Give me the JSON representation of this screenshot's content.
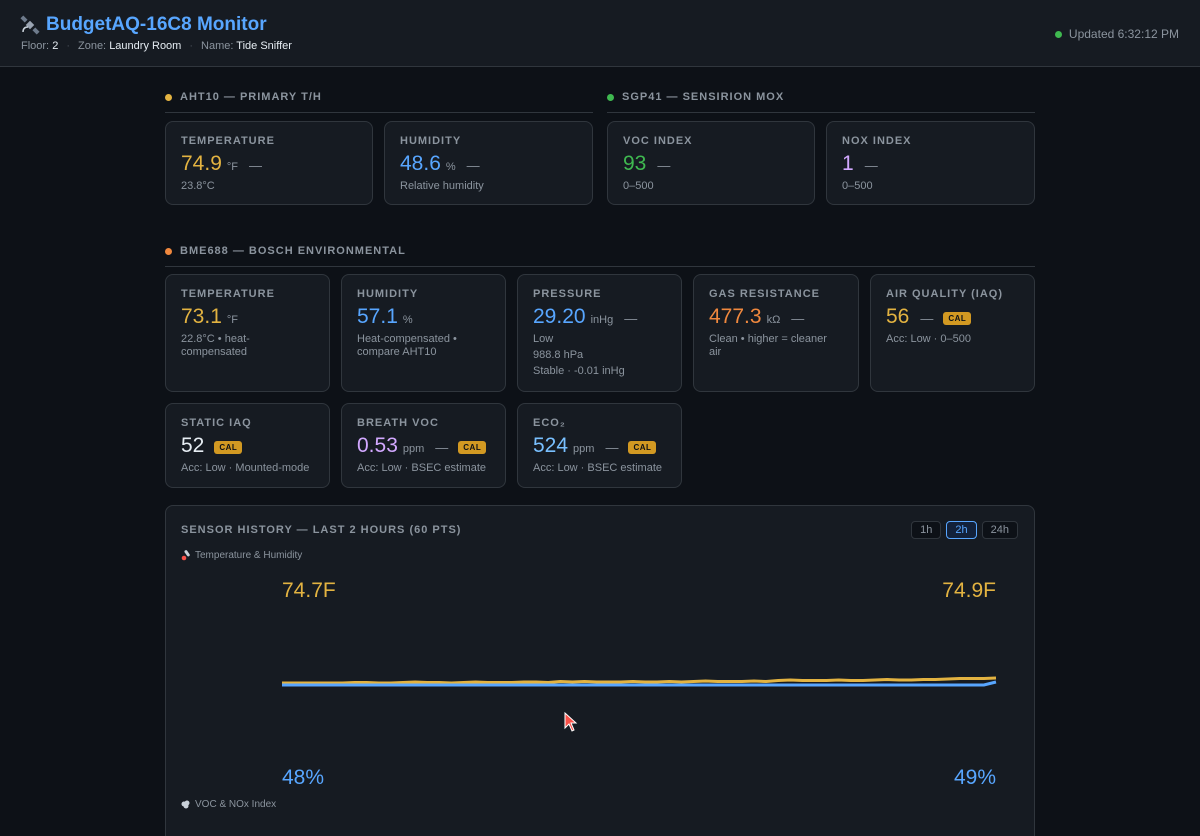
{
  "header": {
    "title": "BudgetAQ-16C8 Monitor",
    "floor_label": "Floor:",
    "floor": "2",
    "zone_label": "Zone:",
    "zone": "Laundry Room",
    "name_label": "Name:",
    "name": "Tide Sniffer",
    "updated": "Updated 6:32:12 PM",
    "icon": "satellite-icon"
  },
  "aht10": {
    "title": "AHT10 — PRIMARY T/H",
    "dot_color": "#e3b341",
    "temperature": {
      "label": "TEMPERATURE",
      "value": "74.9",
      "unit": "°F",
      "trend": "—",
      "sub": "23.8°C"
    },
    "humidity": {
      "label": "HUMIDITY",
      "value": "48.6",
      "unit": "%",
      "trend": "—",
      "sub": "Relative humidity"
    }
  },
  "sgp41": {
    "title": "SGP41 — SENSIRION MOX",
    "dot_color": "#3fb950",
    "voc": {
      "label": "VOC INDEX",
      "value": "93",
      "trend": "—",
      "sub": "0–500"
    },
    "nox": {
      "label": "NOX INDEX",
      "value": "1",
      "trend": "—",
      "sub": "0–500"
    }
  },
  "bme688": {
    "title": "BME688 — BOSCH ENVIRONMENTAL",
    "dot_color": "#f0883e",
    "temperature": {
      "label": "TEMPERATURE",
      "value": "73.1",
      "unit": "°F",
      "sub1": "22.8°C • heat-",
      "sub2": "compensated"
    },
    "humidity": {
      "label": "HUMIDITY",
      "value": "57.1",
      "unit": "%",
      "sub1": "Heat-compensated •",
      "sub2": "compare AHT10"
    },
    "pressure": {
      "label": "PRESSURE",
      "value": "29.20",
      "unit": "inHg",
      "trend": "—",
      "sub1": "Low",
      "sub2": "988.8 hPa",
      "sub3": "Stable · -0.01 inHg"
    },
    "gas": {
      "label": "GAS RESISTANCE",
      "value": "477.3",
      "unit": "kΩ",
      "trend": "—",
      "sub1": "Clean • higher = cleaner",
      "sub2": "air"
    },
    "iaq": {
      "label": "AIR QUALITY (IAQ)",
      "value": "56",
      "trend": "—",
      "badge": "CAL",
      "sub": "Acc: Low · 0–500"
    },
    "static_iaq": {
      "label": "STATIC IAQ",
      "value": "52",
      "badge": "CAL",
      "sub": "Acc: Low · Mounted-mode"
    },
    "breath_voc": {
      "label": "BREATH VOC",
      "value": "0.53",
      "unit": "ppm",
      "trend": "—",
      "badge": "CAL",
      "sub": "Acc: Low · BSEC estimate"
    },
    "eco2": {
      "label": "ECO₂",
      "value": "524",
      "unit": "ppm",
      "trend": "—",
      "badge": "CAL",
      "sub": "Acc: Low · BSEC estimate"
    }
  },
  "history": {
    "title": "SENSOR HISTORY — LAST 2 HOURS (60 PTS)",
    "ranges": [
      "1h",
      "2h",
      "24h"
    ],
    "active_range": "2h",
    "th_label": "Temperature & Humidity",
    "th_icon": "thermometer-icon",
    "temp_start": "74.7F",
    "temp_end": "74.9F",
    "hum_start": "48%",
    "hum_end": "49%",
    "voc_label": "VOC & NOx Index",
    "voc_icon": "wind-icon"
  },
  "chart_data": {
    "type": "line",
    "series": [
      {
        "name": "",
        "color": "#e3b341",
        "values": [
          74.7,
          74.7,
          74.7,
          74.7,
          74.7,
          74.7,
          74.72,
          74.72,
          74.7,
          74.7,
          74.72,
          74.74,
          74.72,
          74.72,
          74.7,
          74.72,
          74.74,
          74.72,
          74.72,
          74.72,
          74.74,
          74.74,
          74.72,
          74.76,
          74.74,
          74.76,
          74.74,
          74.74,
          74.74,
          74.76,
          74.74,
          74.74,
          74.76,
          74.74,
          74.76,
          74.78,
          74.76,
          74.76,
          74.76,
          74.78,
          74.76,
          74.8,
          74.82,
          74.8,
          74.8,
          74.8,
          74.82,
          74.8,
          74.8,
          74.82,
          74.84,
          74.82,
          74.82,
          74.84,
          74.84,
          74.86,
          74.88,
          74.88,
          74.88,
          74.9
        ]
      },
      {
        "name": "",
        "color": "#58a6ff",
        "values": [
          48.0,
          48.0,
          48.0,
          48.0,
          48.0,
          48.0,
          48.0,
          48.0,
          48.0,
          48.0,
          48.0,
          48.0,
          48.0,
          48.0,
          48.0,
          48.0,
          48.0,
          48.0,
          48.0,
          48.0,
          48.0,
          48.0,
          48.0,
          48.0,
          48.0,
          48.0,
          48.0,
          48.0,
          48.0,
          48.0,
          48.0,
          48.0,
          48.0,
          48.0,
          48.0,
          48.0,
          48.0,
          48.0,
          48.0,
          48.0,
          48.0,
          48.0,
          48.0,
          48.0,
          48.0,
          48.0,
          48.0,
          48.0,
          48.0,
          48.0,
          48.0,
          48.0,
          48.0,
          48.0,
          48.0,
          48.0,
          48.0,
          48.0,
          48.0,
          49.0
        ]
      }
    ]
  }
}
